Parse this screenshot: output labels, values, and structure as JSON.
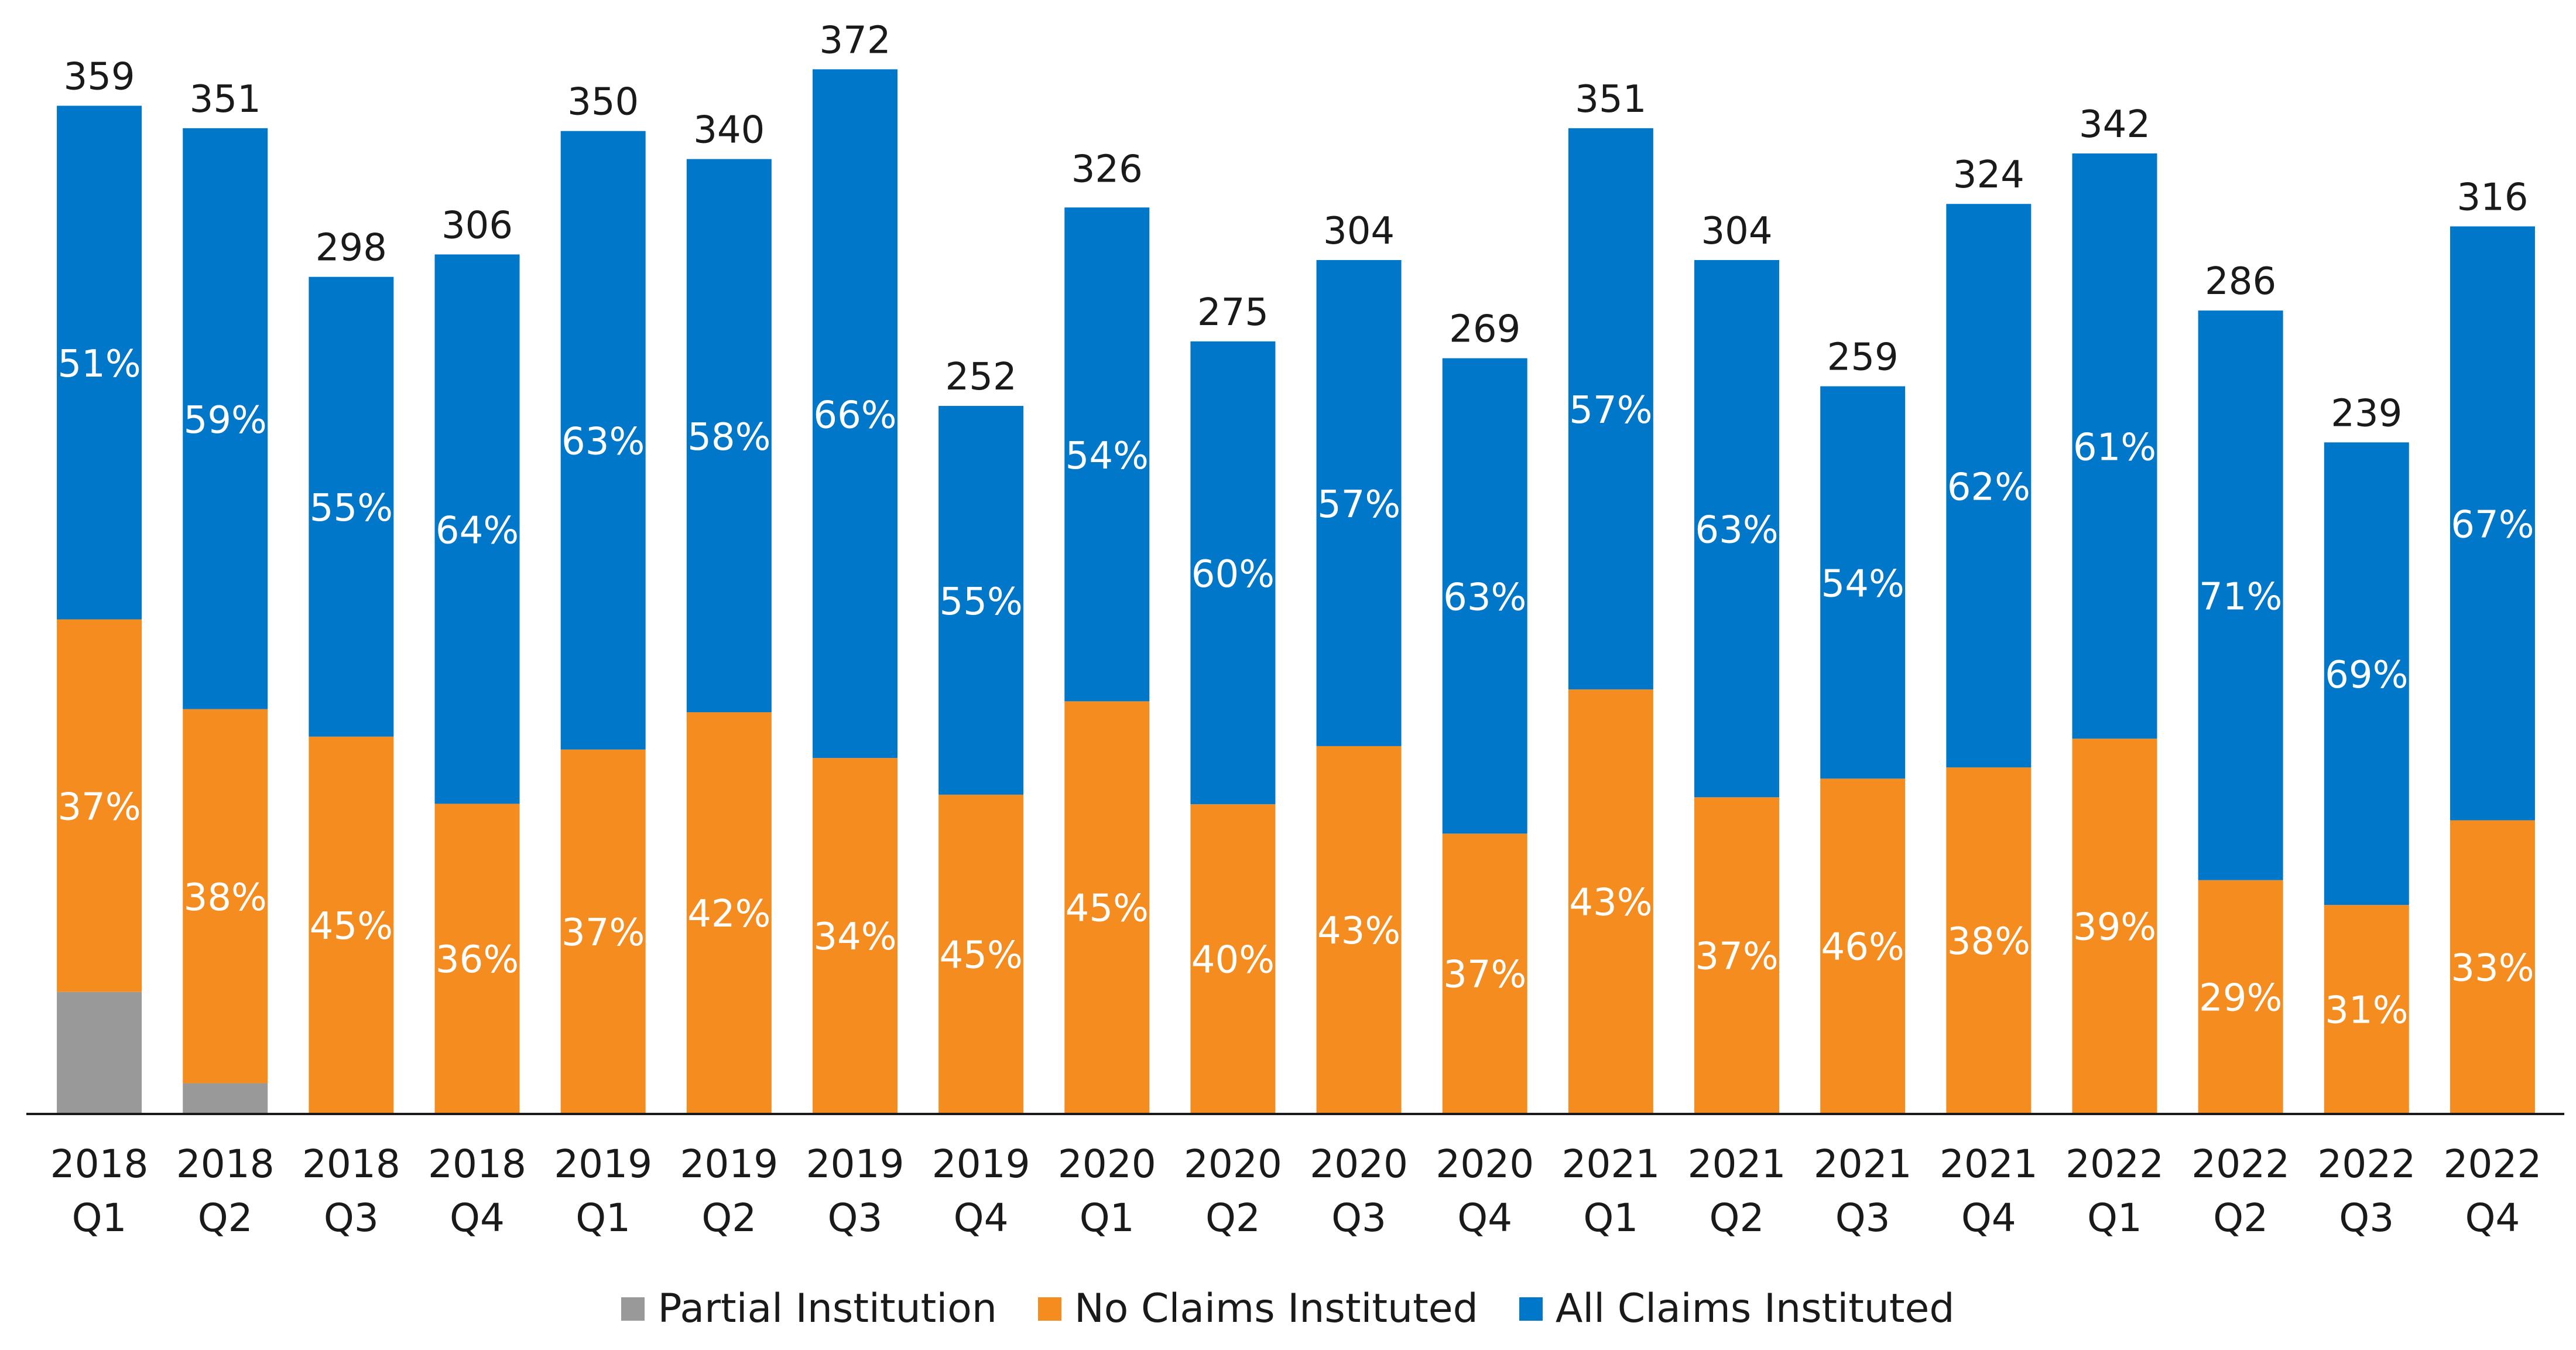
{
  "colors": {
    "partial": "#999999",
    "no_claims": "#F58C1F",
    "all_claims": "#0077C8",
    "axis": "#1a1a1a",
    "text": "#1a1a1a",
    "inside_label": "#ffffff"
  },
  "legend": {
    "items": [
      {
        "key": "partial",
        "label": "Partial Institution"
      },
      {
        "key": "no_claims",
        "label": "No Claims Instituted"
      },
      {
        "key": "all_claims",
        "label": "All Claims Instituted"
      }
    ],
    "position": "bottom-center"
  },
  "chart_data": {
    "type": "bar",
    "stacked": true,
    "categories": [
      [
        "2018",
        "Q1"
      ],
      [
        "2018",
        "Q2"
      ],
      [
        "2018",
        "Q3"
      ],
      [
        "2018",
        "Q4"
      ],
      [
        "2019",
        "Q1"
      ],
      [
        "2019",
        "Q2"
      ],
      [
        "2019",
        "Q3"
      ],
      [
        "2019",
        "Q4"
      ],
      [
        "2020",
        "Q1"
      ],
      [
        "2020",
        "Q2"
      ],
      [
        "2020",
        "Q3"
      ],
      [
        "2020",
        "Q4"
      ],
      [
        "2021",
        "Q1"
      ],
      [
        "2021",
        "Q2"
      ],
      [
        "2021",
        "Q3"
      ],
      [
        "2021",
        "Q4"
      ],
      [
        "2022",
        "Q1"
      ],
      [
        "2022",
        "Q2"
      ],
      [
        "2022",
        "Q3"
      ],
      [
        "2022",
        "Q4"
      ]
    ],
    "totals": [
      359,
      351,
      298,
      306,
      350,
      340,
      372,
      252,
      326,
      275,
      304,
      269,
      351,
      304,
      259,
      324,
      342,
      286,
      239,
      316
    ],
    "series": [
      {
        "name": "Partial Institution",
        "key": "partial",
        "percent": [
          12,
          3,
          0,
          0,
          0,
          0,
          0,
          0,
          0,
          0,
          0,
          0,
          0,
          0,
          0,
          0,
          0,
          0,
          0,
          0
        ],
        "labels": [
          "",
          "",
          "",
          "",
          "",
          "",
          "",
          "",
          "",
          "",
          "",
          "",
          "",
          "",
          "",
          "",
          "",
          "",
          "",
          ""
        ]
      },
      {
        "name": "No Claims Instituted",
        "key": "no_claims",
        "percent": [
          37,
          38,
          45,
          36,
          37,
          42,
          34,
          45,
          45,
          40,
          43,
          37,
          43,
          37,
          46,
          38,
          39,
          29,
          31,
          33
        ],
        "labels": [
          "37%",
          "38%",
          "45%",
          "36%",
          "37%",
          "42%",
          "34%",
          "45%",
          "45%",
          "40%",
          "43%",
          "37%",
          "43%",
          "37%",
          "46%",
          "38%",
          "39%",
          "29%",
          "31%",
          "33%"
        ]
      },
      {
        "name": "All Claims Instituted",
        "key": "all_claims",
        "percent": [
          51,
          59,
          55,
          64,
          63,
          58,
          66,
          55,
          54,
          60,
          57,
          63,
          57,
          63,
          54,
          62,
          61,
          71,
          69,
          67
        ],
        "labels": [
          "51%",
          "59%",
          "55%",
          "64%",
          "63%",
          "58%",
          "66%",
          "55%",
          "54%",
          "60%",
          "57%",
          "63%",
          "57%",
          "63%",
          "54%",
          "62%",
          "61%",
          "71%",
          "69%",
          "67%"
        ]
      }
    ],
    "ylim": [
      0,
      380
    ],
    "grid": false
  }
}
